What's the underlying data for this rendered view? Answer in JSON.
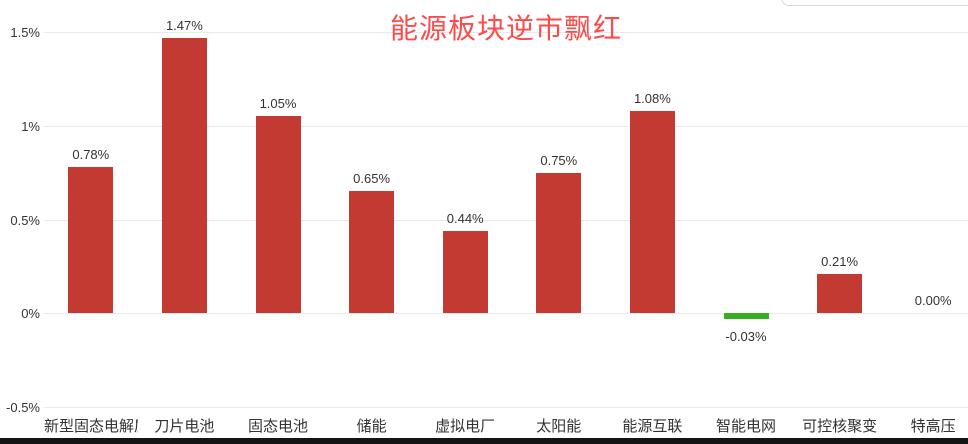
{
  "title": {
    "text": "能源板块逆市飘红"
  },
  "colors": {
    "title": "#fb4b4b",
    "positive_bar": "#c23a31",
    "negative_bar": "#39ad21",
    "grid_line": "#e9e9e9",
    "tick_text": "#333333",
    "value_text": "#333333",
    "category_text": "#333333",
    "bottom_strip": "#141414",
    "panel_edge_border": "#d9d9d9"
  },
  "y_axis": {
    "ticks": [
      {
        "label": "1.5%",
        "value": 1.5
      },
      {
        "label": "1%",
        "value": 1.0
      },
      {
        "label": "0.5%",
        "value": 0.5
      },
      {
        "label": "0%",
        "value": 0.0
      },
      {
        "label": "-0.5%",
        "value": -0.5
      }
    ]
  },
  "chart_data": {
    "type": "bar",
    "title": "能源板块逆市飘红",
    "categories": [
      "新型固态电解质",
      "刀片电池",
      "固态电池",
      "储能",
      "虚拟电厂",
      "太阳能",
      "能源互联",
      "智能电网",
      "可控核聚变",
      "特高压"
    ],
    "values": [
      0.78,
      1.47,
      1.05,
      0.65,
      0.44,
      0.75,
      1.08,
      -0.03,
      0.21,
      0.0
    ],
    "value_labels": [
      "0.78%",
      "1.47%",
      "1.05%",
      "0.65%",
      "0.44%",
      "0.75%",
      "1.08%",
      "-0.03%",
      "0.21%",
      "0.00%"
    ],
    "xlabel": "",
    "ylabel": "",
    "ylim": [
      -0.5,
      1.5
    ],
    "grid": true,
    "legend_position": "none",
    "bar_color_positive": "#c23a31",
    "bar_color_negative": "#39ad21"
  }
}
